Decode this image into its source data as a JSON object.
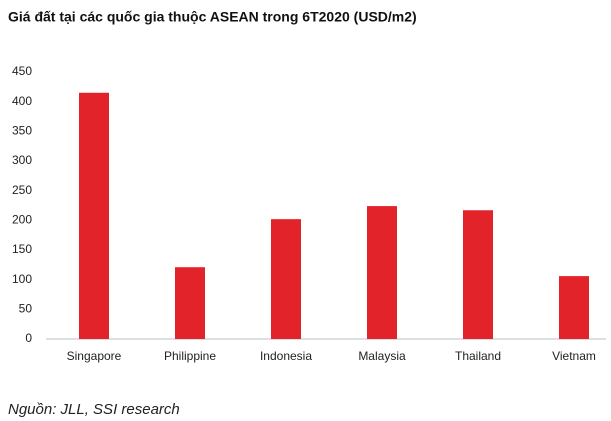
{
  "chart_data": {
    "type": "bar",
    "title": "Giá đất tại các quốc gia thuộc ASEAN trong 6T2020 (USD/m2)",
    "categories": [
      "Singapore",
      "Philippine",
      "Indonesia",
      "Malaysia",
      "Thailand",
      "Vietnam"
    ],
    "values": [
      415,
      121,
      202,
      224,
      217,
      106
    ],
    "color": "#e3232a",
    "ylim": [
      0,
      450
    ],
    "yticks": [
      0,
      50,
      100,
      150,
      200,
      250,
      300,
      350,
      400,
      450
    ],
    "grid": false,
    "source": "Nguồn: JLL, SSI research"
  }
}
